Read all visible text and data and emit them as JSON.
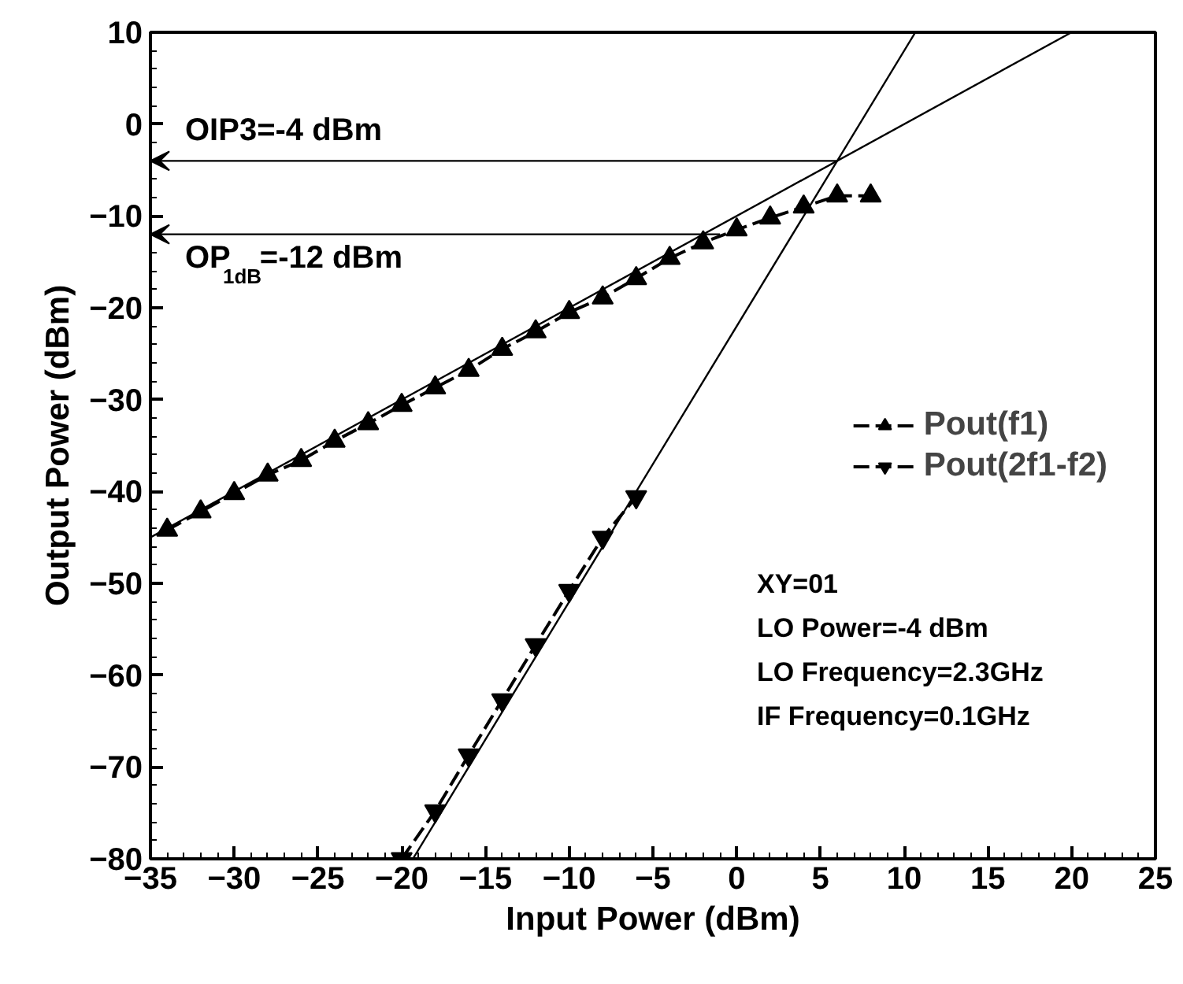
{
  "chart_data": {
    "type": "line",
    "xlabel": "Input Power (dBm)",
    "ylabel": "Output Power (dBm)",
    "xlim": [
      -35,
      25
    ],
    "ylim": [
      -80,
      10
    ],
    "xticks": [
      -35,
      -30,
      -25,
      -20,
      -15,
      -10,
      -5,
      0,
      5,
      10,
      15,
      20,
      25
    ],
    "yticks": [
      -80,
      -70,
      -60,
      -50,
      -40,
      -30,
      -20,
      -10,
      0,
      10
    ],
    "grid": false,
    "legend": "right",
    "series": [
      {
        "name": "Pout(f1)",
        "color": "#000000",
        "marker": "triangle",
        "line_style": "dashed",
        "x": [
          -34,
          -32,
          -30,
          -28,
          -26,
          -24,
          -22,
          -20,
          -18,
          -16,
          -14,
          -12,
          -10,
          -8,
          -6,
          -4,
          -2,
          0,
          2,
          4,
          6,
          8
        ],
        "values": [
          -44.2,
          -42.2,
          -40.2,
          -38.2,
          -36.6,
          -34.5,
          -32.6,
          -30.6,
          -28.7,
          -26.8,
          -24.5,
          -22.6,
          -20.5,
          -18.9,
          -16.8,
          -14.6,
          -12.9,
          -11.5,
          -10.2,
          -9.0,
          -7.8,
          -7.8
        ]
      },
      {
        "name": "Pout(2f1-f2)",
        "color": "#000000",
        "marker": "triangle",
        "line_style": "dashed",
        "x": [
          -20,
          -18,
          -16,
          -14,
          -12,
          -10,
          -8,
          -6
        ],
        "values": [
          -80,
          -74.8,
          -68.7,
          -62.7,
          -56.7,
          -50.8,
          -45,
          -40.6
        ]
      },
      {
        "type": "line",
        "color": "#000000",
        "marker": "none",
        "line_style": "solid",
        "x": [
          -35,
          20
        ],
        "values": [
          -45,
          10
        ]
      },
      {
        "type": "line",
        "color": "#000000",
        "marker": "none",
        "line_style": "solid",
        "x": [
          -19.33,
          10.67
        ],
        "values": [
          -80,
          10
        ]
      }
    ],
    "annotations": [
      {
        "text": "OIP3=-4 dBm",
        "x": 6,
        "y": -4
      },
      {
        "text": "OP$_{1dB}$=-12 dBm",
        "x": -1,
        "y": -12
      },
      "XY=01",
      "LO Power=-4 dBm",
      "LO Frequency=2.3GHz",
      "IF Frequency=0.1GHz"
    ]
  }
}
